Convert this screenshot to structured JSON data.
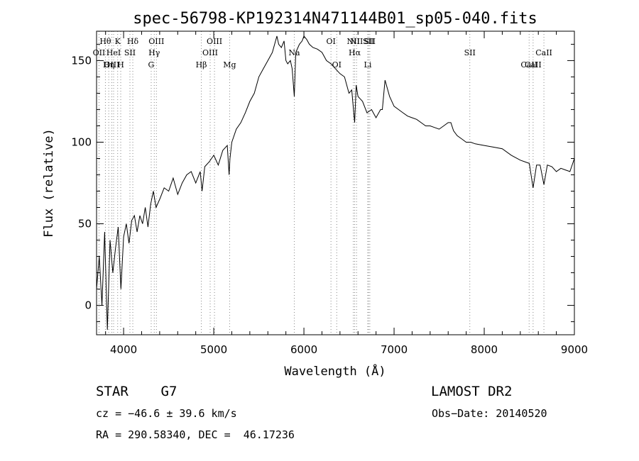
{
  "chart_data": {
    "type": "line",
    "title": "spec-56798-KP192314N471144B01_sp05-040.fits",
    "xlabel": "Wavelength (Å)",
    "ylabel": "Flux (relative)",
    "xlim": [
      3700,
      9000
    ],
    "ylim": [
      -18,
      168
    ],
    "x_ticks": [
      4000,
      5000,
      6000,
      7000,
      8000,
      9000
    ],
    "x_tick_labels": [
      "4000",
      "5000",
      "6000",
      "7000",
      "8000",
      "9000"
    ],
    "y_ticks": [
      0,
      50,
      100,
      150
    ],
    "y_tick_labels": [
      "0",
      "50",
      "100",
      "150"
    ],
    "grid": false,
    "line_color": "#000000",
    "marker_color": "#888888",
    "series": [
      {
        "x": [
          3700,
          3730,
          3760,
          3790,
          3820,
          3850,
          3880,
          3910,
          3940,
          3970,
          4000,
          4030,
          4060,
          4090,
          4120,
          4150,
          4180,
          4210,
          4240,
          4270,
          4300,
          4330,
          4360,
          4400,
          4450,
          4500,
          4550,
          4600,
          4650,
          4700,
          4750,
          4800,
          4850,
          4870,
          4900,
          4950,
          5000,
          5050,
          5100,
          5150,
          5170,
          5180,
          5200,
          5250,
          5300,
          5350,
          5400,
          5450,
          5500,
          5550,
          5600,
          5650,
          5700,
          5720,
          5750,
          5780,
          5800,
          5820,
          5850,
          5870,
          5893,
          5910,
          5950,
          5980,
          6000,
          6030,
          6060,
          6100,
          6150,
          6200,
          6250,
          6300,
          6350,
          6400,
          6450,
          6500,
          6530,
          6563,
          6580,
          6600,
          6650,
          6700,
          6750,
          6800,
          6850,
          6870,
          6900,
          6950,
          7000,
          7050,
          7100,
          7150,
          7200,
          7250,
          7300,
          7350,
          7400,
          7450,
          7500,
          7550,
          7600,
          7630,
          7660,
          7700,
          7750,
          7800,
          7850,
          7900,
          8000,
          8100,
          8200,
          8300,
          8400,
          8450,
          8500,
          8542,
          8580,
          8620,
          8662,
          8700,
          8750,
          8800,
          8850,
          8900,
          8950,
          9000
        ],
        "y": [
          10,
          30,
          0,
          45,
          -15,
          40,
          20,
          35,
          48,
          10,
          42,
          50,
          38,
          52,
          55,
          45,
          55,
          50,
          60,
          48,
          62,
          70,
          60,
          65,
          72,
          70,
          78,
          68,
          75,
          80,
          82,
          75,
          82,
          70,
          85,
          88,
          92,
          86,
          95,
          98,
          80,
          90,
          100,
          108,
          112,
          118,
          125,
          130,
          140,
          145,
          150,
          155,
          165,
          160,
          158,
          162,
          150,
          148,
          150,
          145,
          128,
          155,
          160,
          162,
          165,
          163,
          160,
          158,
          157,
          155,
          150,
          148,
          145,
          142,
          140,
          130,
          132,
          112,
          135,
          128,
          125,
          118,
          120,
          115,
          120,
          120,
          138,
          128,
          122,
          120,
          118,
          116,
          115,
          114,
          112,
          110,
          110,
          109,
          108,
          110,
          112,
          112,
          107,
          104,
          102,
          100,
          100,
          99,
          98,
          97,
          96,
          92,
          89,
          88,
          87,
          72,
          86,
          86,
          74,
          86,
          85,
          82,
          84,
          83,
          82,
          90
        ]
      }
    ],
    "annotations": [
      {
        "label": "OII",
        "x": 3727,
        "row": 2
      },
      {
        "label": "Hθ",
        "x": 3798,
        "row": 1
      },
      {
        "label": "Hη",
        "x": 3835,
        "row": 3
      },
      {
        "label": "OIII",
        "x": 3869,
        "row": 3
      },
      {
        "label": "HeI",
        "x": 3889,
        "row": 2
      },
      {
        "label": "K",
        "x": 3934,
        "row": 1
      },
      {
        "label": "H",
        "x": 3968,
        "row": 3
      },
      {
        "label": "SII",
        "x": 4070,
        "row": 2
      },
      {
        "label": "Hδ",
        "x": 4102,
        "row": 1
      },
      {
        "label": "G",
        "x": 4306,
        "row": 3
      },
      {
        "label": "Hγ",
        "x": 4340,
        "row": 2
      },
      {
        "label": "OIII",
        "x": 4364,
        "row": 1
      },
      {
        "label": "Hβ",
        "x": 4862,
        "row": 3
      },
      {
        "label": "OIII",
        "x": 4960,
        "row": 2
      },
      {
        "label": "OIII",
        "x": 5008,
        "row": 1
      },
      {
        "label": "Mg",
        "x": 5176,
        "row": 3
      },
      {
        "label": "Na",
        "x": 5893,
        "row": 2
      },
      {
        "label": "OI",
        "x": 6300,
        "row": 1
      },
      {
        "label": "OI",
        "x": 6364,
        "row": 3
      },
      {
        "label": "NII",
        "x": 6548,
        "row": 1
      },
      {
        "label": "Hα",
        "x": 6563,
        "row": 2
      },
      {
        "label": "NII",
        "x": 6584,
        "row": 1
      },
      {
        "label": "SII",
        "x": 6717,
        "row": 1
      },
      {
        "label": "Li",
        "x": 6708,
        "row": 3
      },
      {
        "label": "SII",
        "x": 6731,
        "row": 1
      },
      {
        "label": "SII",
        "x": 7840,
        "row": 2
      },
      {
        "label": "CaII",
        "x": 8498,
        "row": 3
      },
      {
        "label": "CaII",
        "x": 8542,
        "row": 3
      },
      {
        "label": "CaII",
        "x": 8662,
        "row": 2
      }
    ]
  },
  "info": {
    "object": "STAR    G7",
    "survey": "LAMOST DR2",
    "cz": "cz = −46.6 ± 39.6 km/s",
    "obsdate": "Obs−Date: 20140520",
    "radec": "RA = 290.58340, DEC =  46.17236"
  }
}
